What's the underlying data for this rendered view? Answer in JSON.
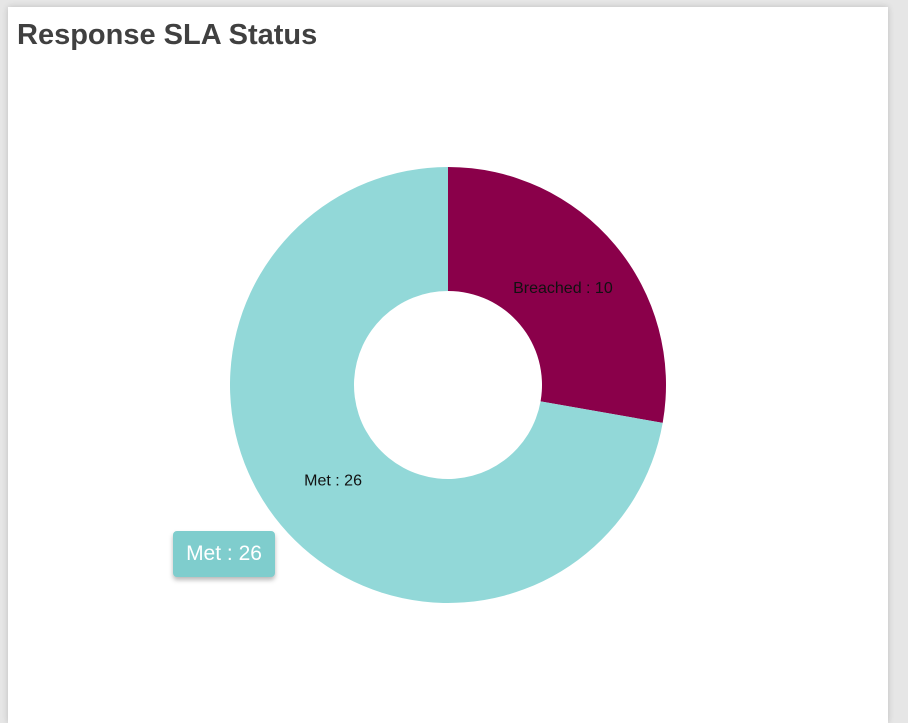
{
  "card": {
    "title": "Response SLA Status"
  },
  "chart_data": {
    "type": "pie",
    "variant": "donut",
    "title": "Response SLA Status",
    "slices": [
      {
        "label": "Breached",
        "value": 10,
        "color": "#8a004a",
        "display": "Breached : 10"
      },
      {
        "label": "Met",
        "value": 26,
        "color": "#92d8d8",
        "display": "Met : 26"
      }
    ],
    "start_angle_deg": 0,
    "direction": "clockwise",
    "legend": "none"
  },
  "tooltip": {
    "text": "Met : 26",
    "color": "#7fcdcd"
  }
}
